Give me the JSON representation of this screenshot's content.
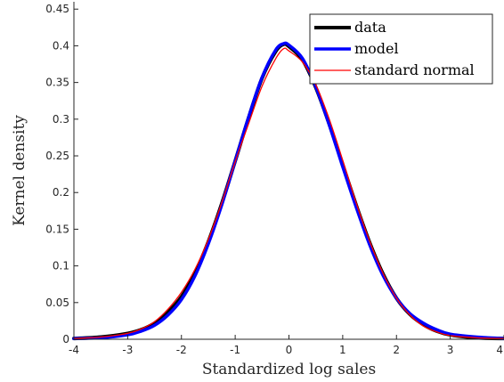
{
  "chart_data": {
    "type": "line",
    "title": "",
    "xlabel": "Standardized log sales",
    "ylabel": "Kernel density",
    "xlim": [
      -4,
      4
    ],
    "ylim": [
      0,
      0.46
    ],
    "xticks": [
      -4,
      -3,
      -2,
      -1,
      0,
      1,
      2,
      3,
      4
    ],
    "yticks": [
      0,
      0.05,
      0.1,
      0.15,
      0.2,
      0.25,
      0.3,
      0.35,
      0.4,
      0.45
    ],
    "xtick_labels": [
      "-4",
      "-3",
      "-2",
      "-1",
      "0",
      "1",
      "2",
      "3",
      "4"
    ],
    "ytick_labels": [
      "0",
      "0.05",
      "0.1",
      "0.15",
      "0.2",
      "0.25",
      "0.3",
      "0.35",
      "0.4",
      "0.45"
    ],
    "grid": false,
    "legend_position": "top-right",
    "series": [
      {
        "name": "data",
        "color": "#000000",
        "x": [
          -4,
          -3.5,
          -3,
          -2.75,
          -2.5,
          -2.25,
          -2,
          -1.75,
          -1.5,
          -1.25,
          -1,
          -0.75,
          -0.5,
          -0.25,
          -0.1,
          0,
          0.25,
          0.5,
          0.75,
          1,
          1.25,
          1.5,
          1.75,
          2,
          2.25,
          2.5,
          2.75,
          3,
          3.5,
          4
        ],
        "y": [
          0.001,
          0.003,
          0.008,
          0.013,
          0.022,
          0.037,
          0.058,
          0.09,
          0.133,
          0.185,
          0.243,
          0.302,
          0.356,
          0.392,
          0.402,
          0.399,
          0.381,
          0.343,
          0.293,
          0.238,
          0.183,
          0.132,
          0.089,
          0.056,
          0.034,
          0.02,
          0.011,
          0.006,
          0.002,
          0.001
        ]
      },
      {
        "name": "model",
        "color": "#0000ff",
        "x": [
          -4,
          -3.5,
          -3,
          -2.75,
          -2.5,
          -2.25,
          -2,
          -1.75,
          -1.5,
          -1.25,
          -1,
          -0.75,
          -0.5,
          -0.25,
          -0.1,
          0,
          0.25,
          0.5,
          0.75,
          1,
          1.25,
          1.5,
          1.75,
          2,
          2.25,
          2.5,
          2.75,
          3,
          3.5,
          4
        ],
        "y": [
          0.001,
          0.002,
          0.006,
          0.011,
          0.019,
          0.033,
          0.054,
          0.086,
          0.13,
          0.183,
          0.243,
          0.303,
          0.357,
          0.394,
          0.403,
          0.401,
          0.383,
          0.344,
          0.292,
          0.235,
          0.18,
          0.129,
          0.087,
          0.056,
          0.035,
          0.022,
          0.013,
          0.007,
          0.003,
          0.001
        ]
      },
      {
        "name": "standard normal",
        "color": "#ff0000",
        "x": [
          -4,
          -3.5,
          -3,
          -2.75,
          -2.5,
          -2.25,
          -2,
          -1.75,
          -1.5,
          -1.25,
          -1,
          -0.75,
          -0.5,
          -0.25,
          -0.1,
          0,
          0.25,
          0.5,
          0.75,
          1,
          1.25,
          1.5,
          1.75,
          2,
          2.25,
          2.5,
          2.75,
          3,
          3.5,
          4
        ],
        "y": [
          0.001,
          0.003,
          0.008,
          0.014,
          0.024,
          0.041,
          0.064,
          0.095,
          0.136,
          0.186,
          0.242,
          0.294,
          0.345,
          0.382,
          0.396,
          0.393,
          0.378,
          0.347,
          0.3,
          0.244,
          0.186,
          0.134,
          0.09,
          0.056,
          0.033,
          0.018,
          0.01,
          0.005,
          0.002,
          0.001
        ]
      }
    ]
  }
}
